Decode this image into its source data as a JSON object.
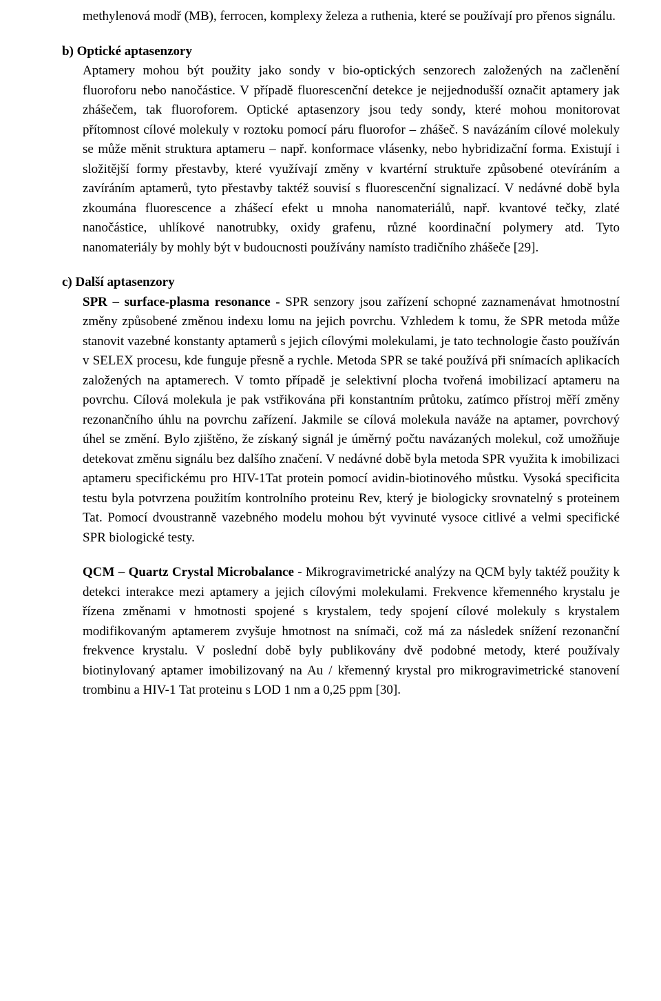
{
  "text_color": "#000000",
  "background_color": "#ffffff",
  "font_family": "Times New Roman",
  "body_font_size_pt": 14,
  "line_height": 1.5,
  "paragraphs": {
    "intro": "methylenová modř (MB), ferrocen, komplexy železa a ruthenia, které se používají pro přenos signálu.",
    "b": {
      "marker": "b)",
      "title": "Optické aptasenzory",
      "body": "Aptamery mohou být použity jako sondy v bio-optických senzorech založených na začlenění fluoroforu nebo nanočástice. V případě fluorescenční detekce je nejjednodušší označit aptamery jak zhášečem, tak fluoroforem. Optické aptasenzory jsou tedy sondy, které mohou monitorovat přítomnost cílové molekuly v roztoku pomocí páru fluorofor – zhášeč. S navázáním cílové molekuly se může měnit struktura aptameru – např. konformace vlásenky, nebo hybridizační forma. Existují i složitější formy přestavby, které využívají změny v kvartérní struktuře způsobené otevíráním a zavíráním aptamerů, tyto přestavby taktéž souvisí s fluorescenční signalizací. V nedávné době byla zkoumána fluorescence a zhášecí efekt u mnoha nanomateriálů, např. kvantové tečky, zlaté nanočástice, uhlíkové nanotrubky, oxidy grafenu, různé koordinační polymery atd. Tyto nanomateriály by mohly být v budoucnosti používány namísto tradičního zhášeče [29]."
    },
    "c": {
      "marker": "c)",
      "title": "Další aptasenzory",
      "spr_label": "SPR – surface-plasma resonance - ",
      "spr_body": "SPR senzory jsou zařízení schopné zaznamenávat hmotnostní změny způsobené změnou indexu lomu na jejich povrchu. Vzhledem k tomu, že SPR metoda může stanovit vazebné konstanty aptamerů s jejich cílovými molekulami, je tato technologie často používán v SELEX procesu, kde funguje přesně a rychle. Metoda SPR se také používá při snímacích aplikacích založených na aptamerech. V tomto případě je selektivní plocha tvořená imobilizací aptameru na povrchu. Cílová molekula je pak vstřikována při konstantním průtoku, zatímco přístroj měří změny rezonančního úhlu na povrchu zařízení. Jakmile se cílová molekula naváže na aptamer, povrchový úhel se změní. Bylo zjištěno, že získaný signál je úměrný počtu navázaných molekul, což umožňuje detekovat změnu signálu bez dalšího značení. V nedávné době byla metoda SPR využita k imobilizaci aptameru specifickému pro HIV-1Tat protein pomocí avidin-biotinového můstku. Vysoká specificita testu byla potvrzena použitím kontrolního proteinu Rev, který je biologicky srovnatelný s proteinem Tat. Pomocí dvoustranně vazebného modelu mohou být vyvinuté vysoce citlivé a velmi specifické SPR biologické testy.",
      "qcm_label": "QCM – Quartz Crystal Microbalance ",
      "qcm_body": "- Mikrogravimetrické analýzy na QCM byly taktéž použity k detekci interakce mezi aptamery a jejich cílovými molekulami. Frekvence křemenného krystalu je řízena změnami v hmotnosti spojené s krystalem, tedy spojení cílové molekuly s krystalem modifikovaným aptamerem zvyšuje hmotnost na snímači, což má za následek snížení rezonanční frekvence krystalu. V poslední době byly publikovány dvě podobné metody, které používaly biotinylovaný aptamer imobilizovaný na Au / křemenný krystal pro mikrogravimetrické stanovení trombinu a HIV-1 Tat proteinu s LOD 1 nm a 0,25 ppm [30]."
    }
  }
}
